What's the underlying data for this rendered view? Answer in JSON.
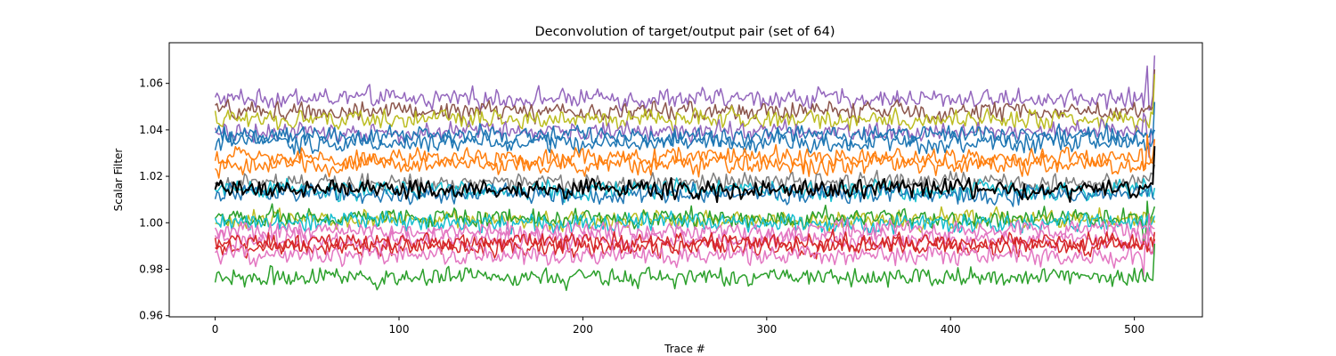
{
  "chart_data": {
    "type": "line",
    "title": "Deconvolution of target/output pair (set of 64)",
    "xlabel": "Trace #",
    "ylabel": "Scalar Filter",
    "xlim": [
      -25,
      537
    ],
    "ylim": [
      0.9595,
      1.0775
    ],
    "x_ticks": [
      0,
      100,
      200,
      300,
      400,
      500
    ],
    "y_ticks": [
      0.96,
      0.98,
      1.0,
      1.02,
      1.04,
      1.06
    ],
    "y_tick_labels": [
      "0.96",
      "0.98",
      "1.00",
      "1.02",
      "1.04",
      "1.06"
    ],
    "x_tick_labels": [
      "0",
      "100",
      "200",
      "300",
      "400",
      "500"
    ],
    "x_range": [
      0,
      511
    ],
    "grid": false,
    "legend": "none",
    "series": [
      {
        "color": "#9467bd",
        "mean": 1.0535,
        "end": 1.072
      },
      {
        "color": "#8c564b",
        "mean": 1.048,
        "end": 1.066
      },
      {
        "color": "#bcbd22",
        "mean": 1.0445,
        "end": 1.064
      },
      {
        "color": "#9467bd",
        "mean": 1.0395,
        "end": 1.03
      },
      {
        "color": "#1f77b4",
        "mean": 1.0375,
        "end": 1.04
      },
      {
        "color": "#1f77b4",
        "mean": 1.0345,
        "end": 1.052
      },
      {
        "color": "#ff7f0e",
        "mean": 1.028,
        "end": 1.036
      },
      {
        "color": "#ff7f0e",
        "mean": 1.025,
        "end": 1.03
      },
      {
        "color": "#7f7f7f",
        "mean": 1.0175,
        "end": 1.025
      },
      {
        "color": "#17becf",
        "mean": 1.014,
        "end": 1.015
      },
      {
        "color": "#1f77b4",
        "mean": 1.0125,
        "end": 1.01
      },
      {
        "color": "#bcbd22",
        "mean": 1.0015,
        "end": 1.0
      },
      {
        "color": "#2ca02c",
        "mean": 1.002,
        "end": 1.007
      },
      {
        "color": "#17becf",
        "mean": 1.0,
        "end": 1.003
      },
      {
        "color": "#e377c2",
        "mean": 0.9965,
        "end": 0.9975
      },
      {
        "color": "#e377c2",
        "mean": 0.9925,
        "end": 0.995
      },
      {
        "color": "#d62728",
        "mean": 0.9915,
        "end": 0.996
      },
      {
        "color": "#d62728",
        "mean": 0.9895,
        "end": 0.993
      },
      {
        "color": "#e377c2",
        "mean": 0.986,
        "end": 0.992
      },
      {
        "color": "#2ca02c",
        "mean": 0.9765,
        "end": 0.991
      },
      {
        "color": "#000000",
        "mean": 1.0145,
        "end": 1.033
      }
    ]
  }
}
